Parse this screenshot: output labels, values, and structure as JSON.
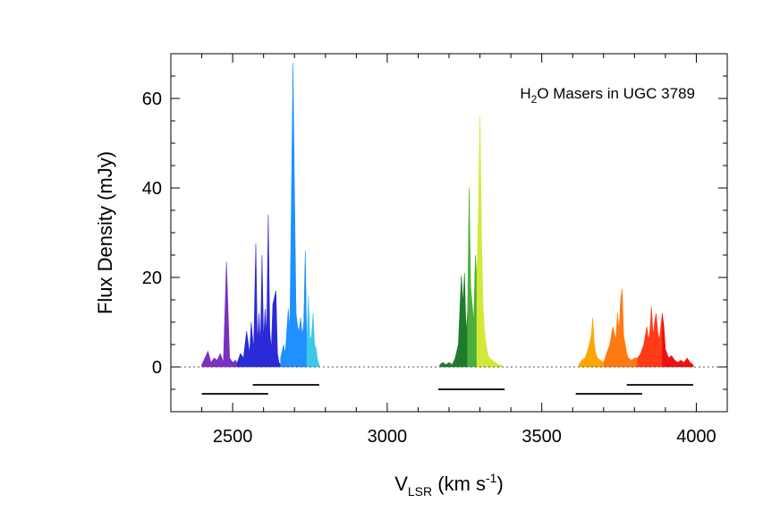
{
  "chart_data": {
    "type": "area",
    "title": "",
    "annotation": {
      "prefix": "H",
      "sub": "2",
      "suffix": "O Masers in UGC 3789"
    },
    "xlabel": {
      "main": "V",
      "sub": "LSR",
      "unit": " (km s",
      "sup": "-1",
      "close": ")"
    },
    "ylabel": "Flux Density (mJy)",
    "xlim": [
      2300,
      4100
    ],
    "ylim": [
      -10,
      70
    ],
    "xticks": [
      2500,
      3000,
      3500,
      4000
    ],
    "yticks": [
      0,
      20,
      40,
      60
    ],
    "x_minor_step": 100,
    "y_minor_step": 5,
    "baseline": 0,
    "grid": false,
    "series": [
      {
        "color": "#7b2fc2",
        "x": [
          2400,
          2420,
          2430,
          2440,
          2450,
          2460,
          2465,
          2470,
          2480,
          2490,
          2500,
          2510,
          2515
        ],
        "values": [
          0.5,
          3.5,
          1,
          2,
          1.5,
          3,
          2,
          1,
          23.5,
          2,
          1,
          1.5,
          0.5
        ]
      },
      {
        "color": "#2a2ad6",
        "x": [
          2515,
          2525,
          2535,
          2545,
          2555,
          2560,
          2568,
          2575,
          2580,
          2585,
          2590,
          2595,
          2600,
          2605,
          2610,
          2615,
          2620,
          2625,
          2630,
          2640,
          2645,
          2650,
          2655
        ],
        "values": [
          1,
          3,
          2,
          8,
          3,
          10,
          4,
          27.5,
          5,
          12,
          5,
          25,
          6,
          13,
          7,
          34,
          8,
          4,
          14,
          17,
          3,
          1,
          0.5
        ]
      },
      {
        "color": "#1e90ff",
        "x": [
          2655,
          2665,
          2670,
          2680,
          2685,
          2690,
          2695,
          2700,
          2705,
          2710,
          2715,
          2720,
          2725,
          2730,
          2735,
          2740
        ],
        "values": [
          2,
          5,
          3,
          13,
          8,
          38,
          68,
          40,
          12,
          9,
          8,
          11,
          7,
          10,
          26,
          4
        ]
      },
      {
        "color": "#3cc8e6",
        "x": [
          2740,
          2745,
          2750,
          2755,
          2760,
          2765,
          2770,
          2775,
          2780
        ],
        "values": [
          4,
          16,
          6,
          7,
          12,
          5,
          4,
          1.5,
          0.5
        ]
      },
      {
        "color": "#1f7a2e",
        "x": [
          3170,
          3180,
          3190,
          3200,
          3210,
          3220,
          3230,
          3240,
          3245,
          3250,
          3255,
          3260
        ],
        "values": [
          0.5,
          1,
          0.5,
          1,
          0.5,
          2,
          5,
          20.5,
          14,
          21,
          8,
          12
        ]
      },
      {
        "color": "#4caf3c",
        "x": [
          3260,
          3265,
          3270,
          3275,
          3280,
          3285,
          3290
        ],
        "values": [
          12,
          40,
          18,
          14,
          10,
          25,
          20
        ]
      },
      {
        "color": "#d4e83a",
        "x": [
          3290,
          3295,
          3300,
          3305,
          3310,
          3315,
          3320,
          3325,
          3330,
          3340,
          3350,
          3360,
          3370
        ],
        "values": [
          20,
          35,
          56,
          30,
          14,
          8,
          5,
          3,
          2,
          1.5,
          1,
          0.5,
          0.5
        ]
      },
      {
        "color": "#ffa500",
        "x": [
          3620,
          3630,
          3640,
          3650,
          3660,
          3665,
          3670,
          3675,
          3680,
          3690,
          3700
        ],
        "values": [
          0.5,
          1.5,
          2,
          4,
          7,
          11,
          5,
          3,
          2,
          1.5,
          1
        ]
      },
      {
        "color": "#ff7a12",
        "x": [
          3700,
          3710,
          3720,
          3730,
          3740,
          3745,
          3750,
          3755,
          3760,
          3765,
          3770,
          3775,
          3780,
          3790,
          3800,
          3810
        ],
        "values": [
          1,
          3,
          5,
          9,
          6,
          12,
          8,
          15,
          17.5,
          7,
          5,
          3,
          2,
          1.5,
          2,
          2
        ]
      },
      {
        "color": "#ff3b1a",
        "x": [
          3810,
          3820,
          3830,
          3835,
          3840,
          3845,
          3850,
          3855,
          3860,
          3865,
          3870,
          3875,
          3880,
          3885,
          3890
        ],
        "values": [
          2,
          3,
          5,
          7,
          9,
          6,
          8,
          13.5,
          7,
          10,
          12,
          8,
          6,
          9,
          12
        ]
      },
      {
        "color": "#ee1111",
        "x": [
          3890,
          3895,
          3900,
          3910,
          3920,
          3930,
          3940,
          3950,
          3960,
          3970,
          3980,
          3990
        ],
        "values": [
          12,
          9,
          4,
          2,
          2.5,
          1.5,
          1,
          1.5,
          1,
          2,
          1,
          0.5
        ]
      }
    ],
    "velocity_ranges": [
      {
        "x": [
          2400,
          2615
        ],
        "y": -6
      },
      {
        "x": [
          2565,
          2780
        ],
        "y": -4
      },
      {
        "x": [
          3165,
          3380
        ],
        "y": -5
      },
      {
        "x": [
          3610,
          3825
        ],
        "y": -6
      },
      {
        "x": [
          3775,
          3990
        ],
        "y": -4
      }
    ]
  }
}
